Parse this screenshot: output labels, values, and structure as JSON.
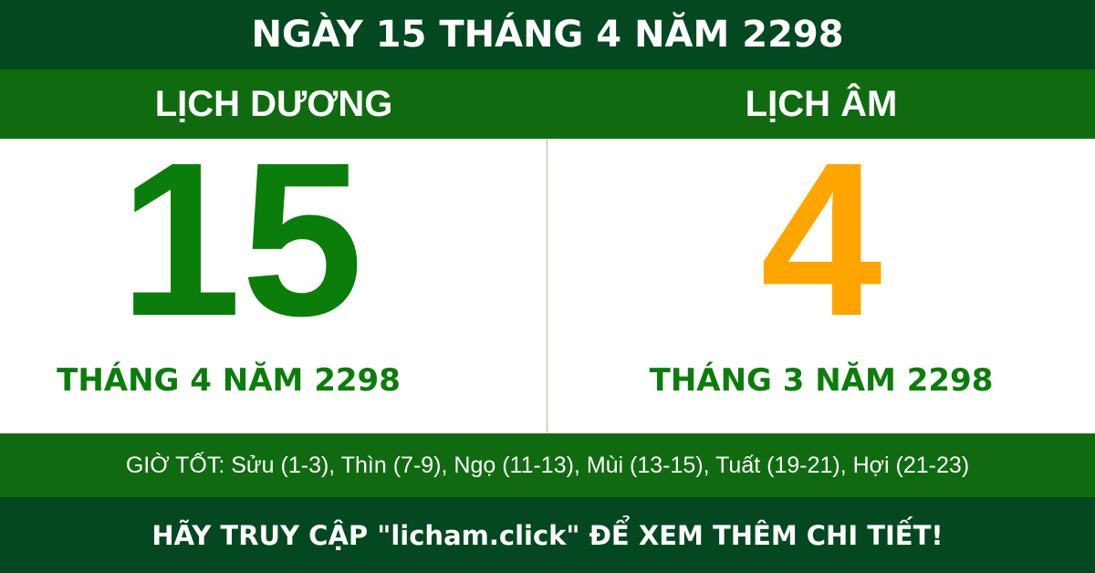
{
  "title": "NGÀY 15 THÁNG 4 NĂM 2298",
  "colors": {
    "dark_green": "#034820",
    "green": "#106b10",
    "day_green": "#0a7d0a",
    "lunar_orange": "#ffa500"
  },
  "solar": {
    "heading": "LỊCH DƯƠNG",
    "day": "15",
    "month_year": "THÁNG 4 NĂM 2298"
  },
  "lunar": {
    "heading": "LỊCH ÂM",
    "day": "4",
    "month_year": "THÁNG 3 NĂM 2298"
  },
  "good_hours": "GIỜ TỐT: Sửu (1-3), Thìn (7-9), Ngọ (11-13), Mùi (13-15), Tuất (19-21), Hợi (21-23)",
  "footer": "HÃY TRUY CẬP \"licham.click\" ĐỂ XEM THÊM CHI TIẾT!"
}
